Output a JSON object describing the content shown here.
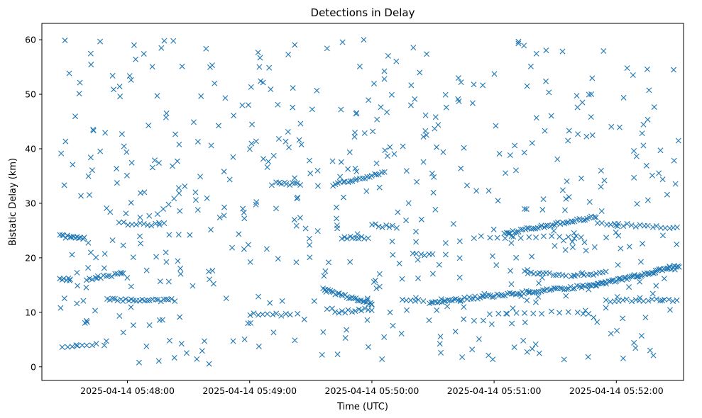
{
  "chart_data": {
    "type": "scatter",
    "title": "Detections in Delay",
    "xlabel": "Time (UTC)",
    "ylabel": "Bistatic Delay (km)",
    "marker": "x",
    "color": "#1f77b4",
    "grid": false,
    "xlim": [
      "2025-04-14T05:47:18",
      "2025-04-14T05:52:33"
    ],
    "ylim": [
      -2.5,
      63
    ],
    "x_ticks": [
      "2025-04-14 05:48:00",
      "2025-04-14 05:49:00",
      "2025-04-14 05:50:00",
      "2025-04-14 05:51:00",
      "2025-04-14 05:52:00"
    ],
    "y_ticks": [
      0,
      10,
      20,
      30,
      40,
      50,
      60
    ],
    "trails": [
      {
        "start": "2025-04-14T05:47:27",
        "end": "2025-04-14T05:47:39",
        "y0": 24.0,
        "y1": 23.5,
        "n": 14
      },
      {
        "start": "2025-04-14T05:47:27",
        "end": "2025-04-14T05:47:32",
        "y0": 16.2,
        "y1": 16.0,
        "n": 6
      },
      {
        "start": "2025-04-14T05:47:40",
        "end": "2025-04-14T05:47:58",
        "y0": 16.0,
        "y1": 17.2,
        "n": 14
      },
      {
        "start": "2025-04-14T05:47:50",
        "end": "2025-04-14T05:48:23",
        "y0": 12.3,
        "y1": 12.2,
        "n": 26
      },
      {
        "start": "2025-04-14T05:47:56",
        "end": "2025-04-14T05:48:18",
        "y0": 26.3,
        "y1": 26.1,
        "n": 12
      },
      {
        "start": "2025-04-14T05:48:15",
        "end": "2025-04-14T05:48:28",
        "y0": 28.0,
        "y1": 33.0,
        "n": 6
      },
      {
        "start": "2025-04-14T05:47:28",
        "end": "2025-04-14T05:47:45",
        "y0": 3.8,
        "y1": 4.1,
        "n": 8
      },
      {
        "start": "2025-04-14T05:49:13",
        "end": "2025-04-14T05:49:25",
        "y0": 33.8,
        "y1": 33.4,
        "n": 10
      },
      {
        "start": "2025-04-14T05:49:00",
        "end": "2025-04-14T05:49:20",
        "y0": 9.6,
        "y1": 9.6,
        "n": 10
      },
      {
        "start": "2025-04-14T05:49:36",
        "end": "2025-04-14T05:50:00",
        "y0": 14.2,
        "y1": 11.5,
        "n": 28
      },
      {
        "start": "2025-04-14T05:49:41",
        "end": "2025-04-14T05:50:06",
        "y0": 33.4,
        "y1": 35.6,
        "n": 22
      },
      {
        "start": "2025-04-14T05:49:45",
        "end": "2025-04-14T05:49:58",
        "y0": 23.7,
        "y1": 23.6,
        "n": 10
      },
      {
        "start": "2025-04-14T05:49:42",
        "end": "2025-04-14T05:50:00",
        "y0": 10.0,
        "y1": 10.6,
        "n": 12
      },
      {
        "start": "2025-04-14T05:50:00",
        "end": "2025-04-14T05:50:12",
        "y0": 26.0,
        "y1": 25.6,
        "n": 8
      },
      {
        "start": "2025-04-14T05:50:15",
        "end": "2025-04-14T05:50:25",
        "y0": 12.2,
        "y1": 12.2,
        "n": 6
      },
      {
        "start": "2025-04-14T05:50:20",
        "end": "2025-04-14T05:50:30",
        "y0": 20.8,
        "y1": 20.6,
        "n": 6
      },
      {
        "start": "2025-04-14T05:50:28",
        "end": "2025-04-14T05:51:50",
        "y0": 11.8,
        "y1": 15.0,
        "n": 80
      },
      {
        "start": "2025-04-14T05:50:50",
        "end": "2025-04-14T05:51:40",
        "y0": 23.8,
        "y1": 23.8,
        "n": 14
      },
      {
        "start": "2025-04-14T05:51:05",
        "end": "2025-04-14T05:51:50",
        "y0": 24.5,
        "y1": 27.5,
        "n": 45
      },
      {
        "start": "2025-04-14T05:51:51",
        "end": "2025-04-14T05:52:30",
        "y0": 26.3,
        "y1": 25.5,
        "n": 20
      },
      {
        "start": "2025-04-14T05:51:15",
        "end": "2025-04-14T05:51:35",
        "y0": 17.4,
        "y1": 16.8,
        "n": 14
      },
      {
        "start": "2025-04-14T05:51:38",
        "end": "2025-04-14T05:51:55",
        "y0": 16.7,
        "y1": 17.3,
        "n": 12
      },
      {
        "start": "2025-04-14T05:51:50",
        "end": "2025-04-14T05:52:31",
        "y0": 15.0,
        "y1": 18.5,
        "n": 55
      },
      {
        "start": "2025-04-14T05:51:55",
        "end": "2025-04-14T05:52:30",
        "y0": 12.1,
        "y1": 12.3,
        "n": 18
      },
      {
        "start": "2025-04-14T05:50:58",
        "end": "2025-04-14T05:51:45",
        "y0": 9.7,
        "y1": 10.2,
        "n": 12
      }
    ],
    "scatter": {
      "start": "2025-04-14T05:47:27",
      "end": "2025-04-14T05:52:31",
      "y_min": 0.5,
      "y_max": 60,
      "n": 540,
      "seed": 7
    }
  }
}
